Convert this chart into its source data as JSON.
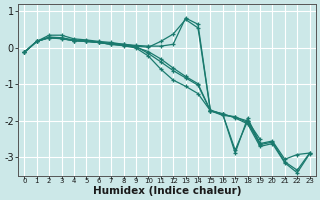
{
  "title": "",
  "xlabel": "Humidex (Indice chaleur)",
  "bg_color": "#cce8e8",
  "grid_color": "#ffffff",
  "line_color": "#1a7a6e",
  "series": [
    {
      "x": [
        0,
        1,
        2,
        3,
        4,
        5,
        6,
        7,
        8,
        9,
        10,
        11,
        12,
        13,
        14,
        15,
        16,
        17,
        18,
        19
      ],
      "y": [
        -0.12,
        0.18,
        0.28,
        0.25,
        0.2,
        0.18,
        0.15,
        0.13,
        0.1,
        0.07,
        0.05,
        0.05,
        0.1,
        0.82,
        0.65,
        -1.7,
        -1.82,
        -2.8,
        -2.0,
        -2.5
      ]
    },
    {
      "x": [
        0,
        1,
        2,
        3,
        4,
        5,
        6,
        7,
        8,
        9,
        10,
        11,
        12,
        13,
        14,
        15,
        16,
        17,
        18,
        19
      ],
      "y": [
        -0.12,
        0.18,
        0.35,
        0.35,
        0.25,
        0.22,
        0.18,
        0.15,
        0.1,
        0.05,
        0.02,
        0.18,
        0.38,
        0.78,
        0.55,
        -1.72,
        -1.85,
        -1.88,
        -2.05,
        -2.6
      ]
    },
    {
      "x": [
        0,
        1,
        2,
        3,
        4,
        5,
        6,
        7,
        8,
        9,
        10,
        11,
        12,
        13,
        14,
        15,
        16,
        17,
        18,
        19,
        20,
        21,
        22,
        23
      ],
      "y": [
        -0.12,
        0.18,
        0.3,
        0.28,
        0.22,
        0.2,
        0.15,
        0.1,
        0.08,
        0.02,
        -0.1,
        -0.3,
        -0.55,
        -0.78,
        -0.98,
        -1.72,
        -1.82,
        -2.88,
        -1.92,
        -2.62,
        -2.55,
        -3.05,
        -2.92,
        -2.88
      ]
    },
    {
      "x": [
        0,
        1,
        2,
        3,
        4,
        5,
        6,
        7,
        8,
        9,
        10,
        11,
        12,
        13,
        14,
        15,
        16,
        17,
        18,
        19,
        20,
        21,
        22,
        23
      ],
      "y": [
        -0.12,
        0.18,
        0.28,
        0.26,
        0.2,
        0.18,
        0.15,
        0.1,
        0.08,
        0.04,
        -0.15,
        -0.38,
        -0.62,
        -0.82,
        -1.02,
        -1.72,
        -1.82,
        -1.9,
        -2.0,
        -2.65,
        -2.58,
        -3.12,
        -3.35,
        -2.88
      ]
    },
    {
      "x": [
        0,
        1,
        2,
        3,
        4,
        5,
        6,
        7,
        8,
        9,
        10,
        11,
        12,
        13,
        14,
        15,
        16,
        17,
        18,
        19,
        20,
        21,
        22,
        23
      ],
      "y": [
        -0.12,
        0.18,
        0.28,
        0.26,
        0.2,
        0.18,
        0.15,
        0.1,
        0.06,
        0.0,
        -0.22,
        -0.58,
        -0.88,
        -1.05,
        -1.25,
        -1.72,
        -1.8,
        -1.92,
        -2.08,
        -2.7,
        -2.62,
        -3.15,
        -3.42,
        -2.9
      ]
    }
  ],
  "xlim": [
    -0.5,
    23.5
  ],
  "ylim": [
    -3.5,
    1.2
  ],
  "yticks": [
    -3,
    -2,
    -1,
    0,
    1
  ],
  "xtick_positions": [
    0,
    1,
    2,
    3,
    4,
    5,
    6,
    7,
    8,
    9,
    10,
    11,
    12,
    13,
    14,
    15,
    16,
    17,
    18,
    19,
    20,
    21,
    22,
    23
  ],
  "xtick_labels": [
    "0",
    "1",
    "2",
    "3",
    "4",
    "5",
    "6",
    "7",
    "8",
    "9",
    "10",
    "11",
    "12",
    "13",
    "14",
    "15",
    "16",
    "17",
    "18",
    "19",
    "20",
    "21",
    "22",
    "23"
  ]
}
